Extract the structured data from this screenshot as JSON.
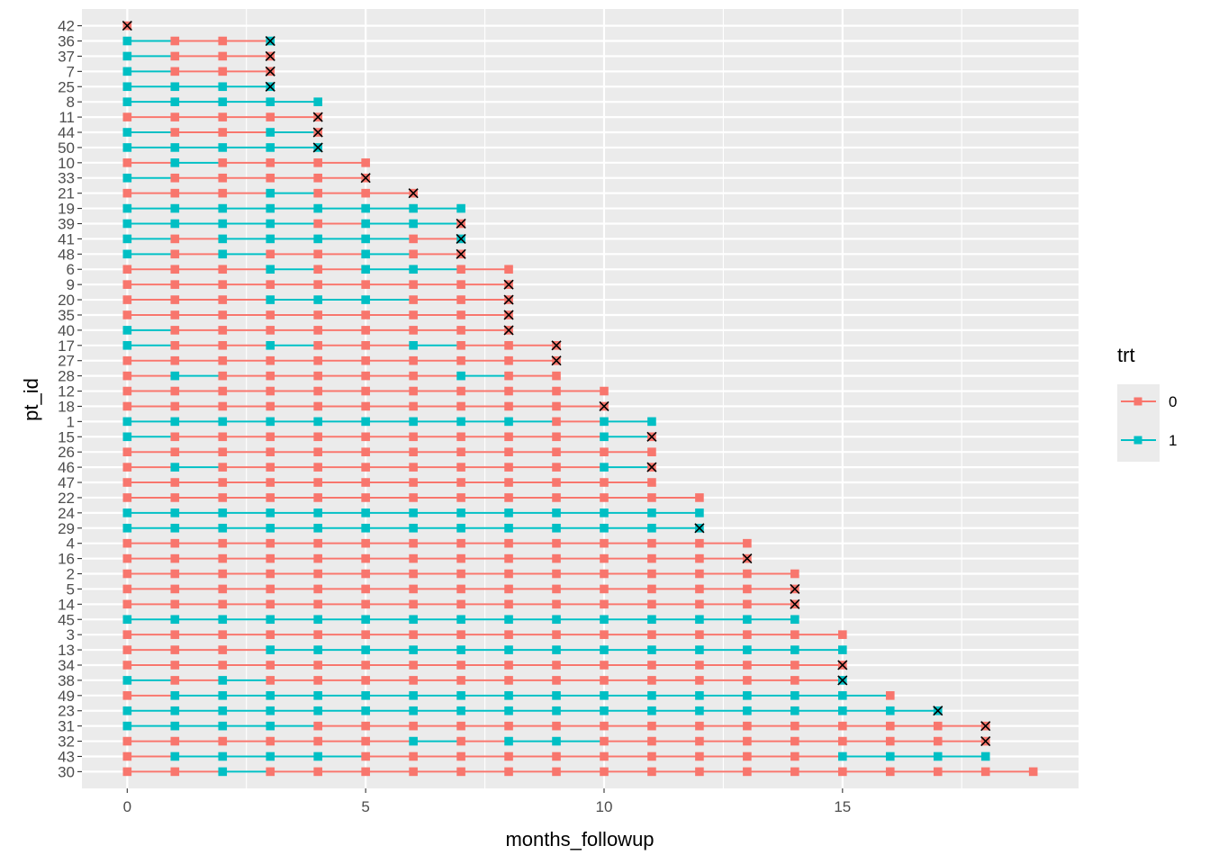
{
  "chart_data": {
    "type": "swimmer",
    "xlabel": "months_followup",
    "ylabel": "pt_id",
    "xlim": [
      -0.95,
      19.95
    ],
    "x_ticks": [
      0,
      5,
      10,
      15
    ],
    "x_tick_labels": [
      "0",
      "5",
      "10",
      "15"
    ],
    "legend": {
      "title": "trt",
      "placement": "right",
      "entries": [
        {
          "label": "0",
          "color": "#F8766D"
        },
        {
          "label": "1",
          "color": "#00BFC4"
        }
      ]
    },
    "event_marker": "cross",
    "rows": [
      {
        "id": "42",
        "trt": "0",
        "event": true
      },
      {
        "id": "36",
        "trt": "1001",
        "event": true
      },
      {
        "id": "37",
        "trt": "1000",
        "event": true
      },
      {
        "id": "7",
        "trt": "1000",
        "event": true
      },
      {
        "id": "25",
        "trt": "1111",
        "event": true
      },
      {
        "id": "8",
        "trt": "11111",
        "event": false
      },
      {
        "id": "11",
        "trt": "00000",
        "event": true
      },
      {
        "id": "44",
        "trt": "10010",
        "event": true
      },
      {
        "id": "50",
        "trt": "11111",
        "event": true
      },
      {
        "id": "10",
        "trt": "010000",
        "event": false
      },
      {
        "id": "33",
        "trt": "100000",
        "event": true
      },
      {
        "id": "21",
        "trt": "0001000",
        "event": true
      },
      {
        "id": "19",
        "trt": "11111111",
        "event": false
      },
      {
        "id": "39",
        "trt": "11110110",
        "event": true
      },
      {
        "id": "41",
        "trt": "10111101",
        "event": true
      },
      {
        "id": "48",
        "trt": "10100100",
        "event": true
      },
      {
        "id": "6",
        "trt": "000101100",
        "event": false
      },
      {
        "id": "9",
        "trt": "000000000",
        "event": true
      },
      {
        "id": "20",
        "trt": "000111000",
        "event": true
      },
      {
        "id": "35",
        "trt": "000000000",
        "event": true
      },
      {
        "id": "40",
        "trt": "100000000",
        "event": true
      },
      {
        "id": "17",
        "trt": "1001001000",
        "event": true
      },
      {
        "id": "27",
        "trt": "0000000000",
        "event": true
      },
      {
        "id": "28",
        "trt": "0100000100",
        "event": false
      },
      {
        "id": "12",
        "trt": "00000000000",
        "event": false
      },
      {
        "id": "18",
        "trt": "00000000000",
        "event": true
      },
      {
        "id": "1",
        "trt": "111111111011",
        "event": false
      },
      {
        "id": "15",
        "trt": "100000000010",
        "event": true
      },
      {
        "id": "26",
        "trt": "000000000000",
        "event": false
      },
      {
        "id": "46",
        "trt": "010000000010",
        "event": true
      },
      {
        "id": "47",
        "trt": "000000000000",
        "event": false
      },
      {
        "id": "22",
        "trt": "0000000000000",
        "event": false
      },
      {
        "id": "24",
        "trt": "1111111111111",
        "event": false
      },
      {
        "id": "29",
        "trt": "1111111111111",
        "event": true
      },
      {
        "id": "4",
        "trt": "00000000000000",
        "event": false
      },
      {
        "id": "16",
        "trt": "00000000000000",
        "event": true
      },
      {
        "id": "2",
        "trt": "000000000000000",
        "event": false
      },
      {
        "id": "5",
        "trt": "000000000000000",
        "event": true
      },
      {
        "id": "14",
        "trt": "000000000000000",
        "event": true
      },
      {
        "id": "45",
        "trt": "111111111111111",
        "event": false
      },
      {
        "id": "3",
        "trt": "0000000000000000",
        "event": false
      },
      {
        "id": "13",
        "trt": "0001111111111111",
        "event": false
      },
      {
        "id": "34",
        "trt": "0000000000000000",
        "event": true
      },
      {
        "id": "38",
        "trt": "1010000000000001",
        "event": true
      },
      {
        "id": "49",
        "trt": "01111111111111110",
        "event": false
      },
      {
        "id": "23",
        "trt": "111111111111111111",
        "event": true
      },
      {
        "id": "31",
        "trt": "1111000000000000000",
        "event": true
      },
      {
        "id": "32",
        "trt": "0000001011000000000",
        "event": true
      },
      {
        "id": "43",
        "trt": "0111100000000001111",
        "event": false
      },
      {
        "id": "30",
        "trt": "00100000000000000000",
        "event": false
      }
    ]
  }
}
